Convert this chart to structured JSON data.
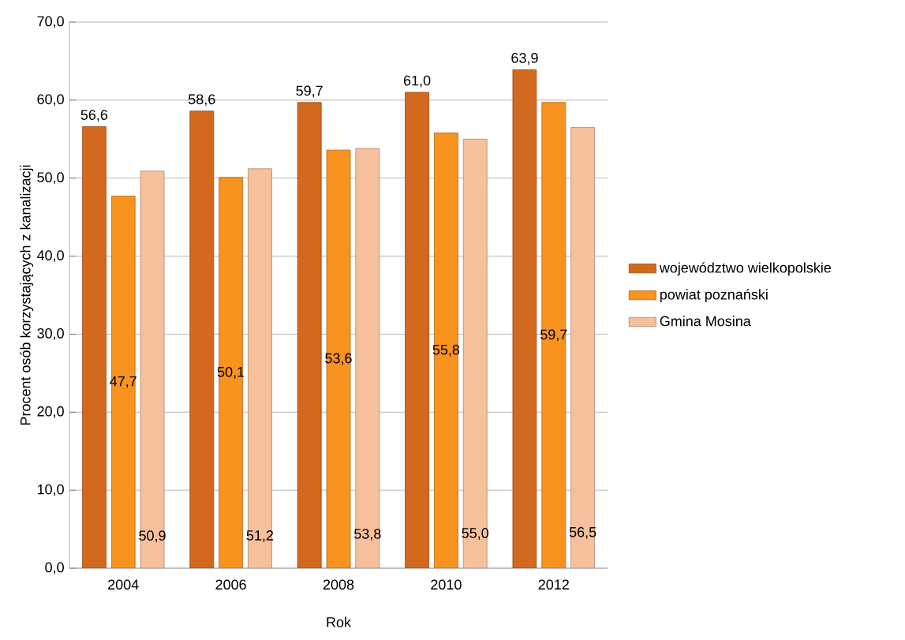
{
  "chart_data": {
    "type": "bar",
    "xlabel": "Rok",
    "ylabel": "Procent osób korzystających z kanalizacji",
    "categories": [
      "2004",
      "2006",
      "2008",
      "2010",
      "2012"
    ],
    "series": [
      {
        "name": "województwo wielkopolskie",
        "color": "#d2691e",
        "values": [
          56.6,
          58.6,
          59.7,
          61.0,
          63.9
        ],
        "value_labels": [
          "56,6",
          "58,6",
          "59,7",
          "61,0",
          "63,9"
        ]
      },
      {
        "name": "powiat poznański",
        "color": "#f7931e",
        "values": [
          47.7,
          50.1,
          53.6,
          55.8,
          59.7
        ],
        "value_labels": [
          "47,7",
          "50,1",
          "53,6",
          "55,8",
          "59,7"
        ]
      },
      {
        "name": "Gmina Mosina",
        "color": "#f6c09c",
        "values": [
          50.9,
          51.2,
          53.8,
          55.0,
          56.5
        ],
        "value_labels": [
          "50,9",
          "51,2",
          "53,8",
          "55,0",
          "56,5"
        ]
      }
    ],
    "ylim": [
      0,
      70
    ],
    "yticks": [
      {
        "value": 0,
        "label": "0,0"
      },
      {
        "value": 10,
        "label": "10,0"
      },
      {
        "value": 20,
        "label": "20,0"
      },
      {
        "value": 30,
        "label": "30,0"
      },
      {
        "value": 40,
        "label": "40,0"
      },
      {
        "value": 50,
        "label": "50,0"
      },
      {
        "value": 60,
        "label": "60,0"
      },
      {
        "value": 70,
        "label": "70,0"
      }
    ],
    "grid": "y",
    "legend": "right"
  }
}
